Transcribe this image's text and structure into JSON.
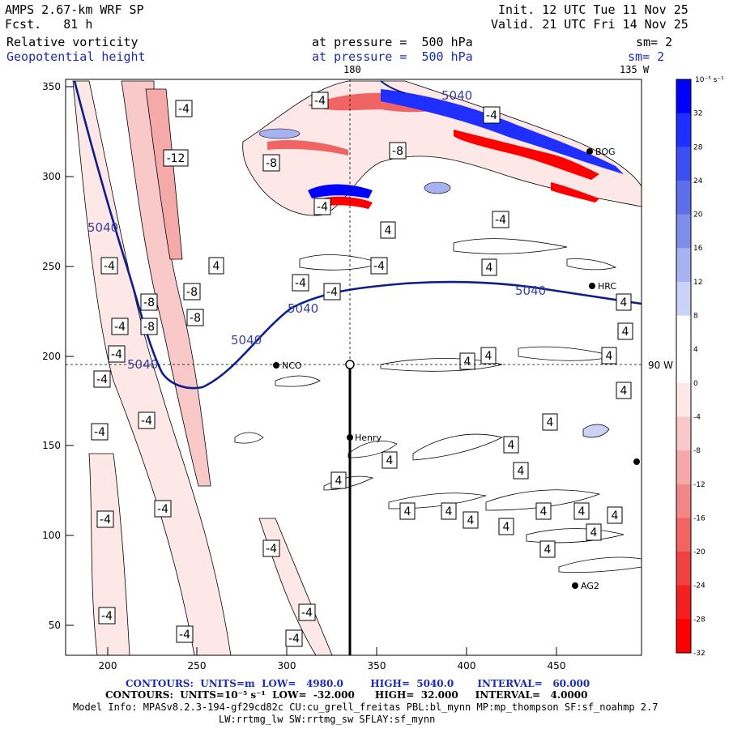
{
  "header": {
    "model": "AMPS 2.67-km WRF SP",
    "forecast": "Fcst.   81 h",
    "init": "Init. 12 UTC Tue 11 Nov 25",
    "valid": "Valid. 21 UTC Fri 14 Nov 25",
    "field1": "Relative vorticity",
    "field2": "Geopotential height",
    "pressure1": "at pressure =  500 hPa",
    "pressure2": "at pressure =  500 hPa",
    "sm1": "sm= 2",
    "sm2": "sm= 2"
  },
  "map": {
    "lon_label_top": "180",
    "lon_label_right_top": "135 W",
    "lon_label_right": "90 W",
    "stations": [
      {
        "name": "NCO"
      },
      {
        "name": "Henry"
      },
      {
        "name": "HRC"
      },
      {
        "name": "BOG"
      },
      {
        "name": "AG2"
      }
    ],
    "height_contour_label": "5040",
    "vorticity_labels_neg": [
      "-4",
      "-8",
      "-12"
    ],
    "vorticity_labels_pos": [
      "4"
    ]
  },
  "axes": {
    "x_ticks": [
      "200",
      "250",
      "300",
      "350",
      "400",
      "450"
    ],
    "y_ticks": [
      "350",
      "300",
      "250",
      "200",
      "150",
      "100",
      "50"
    ]
  },
  "colorbar": {
    "unit": "10⁻⁵ s⁻¹",
    "ticks": [
      "32",
      "28",
      "24",
      "20",
      "16",
      "12",
      "8",
      "4",
      "0",
      "-4",
      "-8",
      "-12",
      "-16",
      "-20",
      "-24",
      "-28",
      "-32"
    ],
    "colors": [
      "#0000ff",
      "#1f2fff",
      "#3d4ef2",
      "#5c6ee8",
      "#7f8fe9",
      "#a7b2f0",
      "#ccd2f6",
      "#ffffff",
      "#ffffff",
      "#fde7e7",
      "#f9c9c9",
      "#f5a9a9",
      "#f28787",
      "#f06464",
      "#f04141",
      "#f22020",
      "#ff0000"
    ],
    "range": [
      -32,
      32
    ]
  },
  "footer": {
    "line1": "CONTOURS:  UNITS=m  LOW=   4980.0        HIGH=  5040.0       INTERVAL=   60.000",
    "line2": "CONTOURS:  UNITS=10⁻⁵ s⁻¹  LOW=  -32.000      HIGH=  32.000     INTERVAL=   4.0000",
    "line3": "Model Info: MPASv8.2.3-194-gf29cd82c CU:cu_grell_freitas PBL:bl_mynn MP:mp_thompson SF:sf_noahmp 2.7",
    "line4": "LW:rrtmg_lw SW:rrtmg_sw SFLAY:sf_mynn"
  }
}
